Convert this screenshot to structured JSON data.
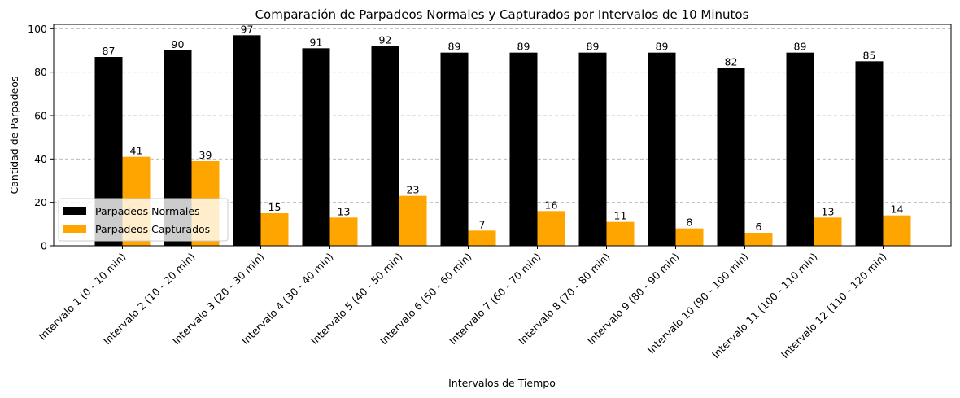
{
  "chart_data": {
    "type": "bar",
    "title": "Comparación de Parpadeos Normales y Capturados por Intervalos de 10 Minutos",
    "xlabel": "Intervalos de Tiempo",
    "ylabel": "Cantidad de Parpadeos",
    "ylim": [
      0,
      102
    ],
    "yticks": [
      0,
      20,
      40,
      60,
      80,
      100
    ],
    "grid": "y-dashed",
    "legend_position": "lower-left",
    "categories": [
      "Intervalo 1 (0 - 10 min)",
      "Intervalo 2 (10 - 20 min)",
      "Intervalo 3 (20 - 30 min)",
      "Intervalo 4 (30 - 40 min)",
      "Intervalo 5 (40 - 50 min)",
      "Intervalo 6 (50 - 60 min)",
      "Intervalo 7 (60 - 70 min)",
      "Intervalo 8 (70 - 80 min)",
      "Intervalo 9 (80 - 90 min)",
      "Intervalo 10 (90 - 100 min)",
      "Intervalo 11 (100 - 110 min)",
      "Intervalo 12 (110 - 120 min)"
    ],
    "series": [
      {
        "name": "Parpadeos Normales",
        "color": "#000000",
        "values": [
          87,
          90,
          97,
          91,
          92,
          89,
          89,
          89,
          89,
          82,
          89,
          85
        ]
      },
      {
        "name": "Parpadeos Capturados",
        "color": "#ffa500",
        "values": [
          41,
          39,
          15,
          13,
          23,
          7,
          16,
          11,
          8,
          6,
          13,
          14
        ]
      }
    ]
  }
}
